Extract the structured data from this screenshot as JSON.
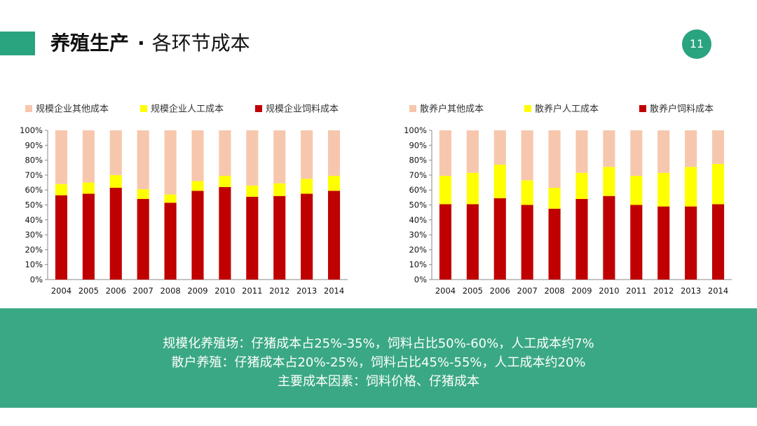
{
  "header": {
    "title_bold": "养殖生产",
    "title_sep": "·",
    "title_rest": "各环节成本",
    "page_number": "11"
  },
  "colors": {
    "accent": "#2aa37f",
    "other_cost": "#f7c7ad",
    "labor_cost": "#ffff00",
    "feed_cost": "#c00000",
    "summary_bg": "#3aa884"
  },
  "chart_data": [
    {
      "type": "bar",
      "stacked": true,
      "categories": [
        "2004",
        "2005",
        "2006",
        "2007",
        "2008",
        "2009",
        "2010",
        "2011",
        "2012",
        "2013",
        "2014"
      ],
      "series": [
        {
          "name": "规模企业饲料成本",
          "color": "#c00000",
          "values": [
            56.5,
            57.5,
            61.5,
            54,
            51.5,
            59.5,
            62,
            55.5,
            56,
            57.5,
            59.5
          ]
        },
        {
          "name": "规模企业人工成本",
          "color": "#ffff00",
          "values": [
            7.5,
            7.5,
            8.5,
            6.5,
            5.5,
            6.5,
            7.5,
            7.5,
            8.5,
            10,
            10
          ]
        },
        {
          "name": "规模企业其他成本",
          "color": "#f7c7ad",
          "values": [
            36,
            35,
            30,
            39.5,
            43,
            34,
            30.5,
            37,
            35.5,
            32.5,
            30.5
          ]
        }
      ],
      "legend_order": [
        "规模企业其他成本",
        "规模企业人工成本",
        "规模企业饲料成本"
      ],
      "yticks": [
        "0%",
        "10%",
        "20%",
        "30%",
        "40%",
        "50%",
        "60%",
        "70%",
        "80%",
        "90%",
        "100%"
      ],
      "ylim": [
        0,
        100
      ],
      "legend_position": "top",
      "grid": false
    },
    {
      "type": "bar",
      "stacked": true,
      "categories": [
        "2004",
        "2005",
        "2006",
        "2007",
        "2008",
        "2009",
        "2010",
        "2011",
        "2012",
        "2013",
        "2014"
      ],
      "series": [
        {
          "name": "散养户饲料成本",
          "color": "#c00000",
          "values": [
            50.5,
            50.5,
            54.5,
            50,
            47.5,
            54,
            56,
            50,
            49,
            49,
            50.5
          ]
        },
        {
          "name": "散养户人工成本",
          "color": "#ffff00",
          "values": [
            19,
            21,
            22.5,
            16.5,
            14,
            17.5,
            19.5,
            19.5,
            22.5,
            26.5,
            27
          ]
        },
        {
          "name": "散养户其他成本",
          "color": "#f7c7ad",
          "values": [
            30.5,
            28.5,
            23,
            33.5,
            38.5,
            28.5,
            24.5,
            30.5,
            28.5,
            24.5,
            22.5
          ]
        }
      ],
      "legend_order": [
        "散养户其他成本",
        "散养户人工成本",
        "散养户饲料成本"
      ],
      "yticks": [
        "0%",
        "10%",
        "20%",
        "30%",
        "40%",
        "50%",
        "60%",
        "70%",
        "80%",
        "90%",
        "100%"
      ],
      "ylim": [
        0,
        100
      ],
      "legend_position": "top",
      "grid": false
    }
  ],
  "summary": {
    "line1": "规模化养殖场：仔猪成本占25%-35%，饲料占比50%-60%，人工成本约7%",
    "line2": "散户养殖：仔猪成本占20%-25%，饲料占比45%-55%，人工成本约20%",
    "line3": "主要成本因素：饲料价格、仔猪成本"
  }
}
